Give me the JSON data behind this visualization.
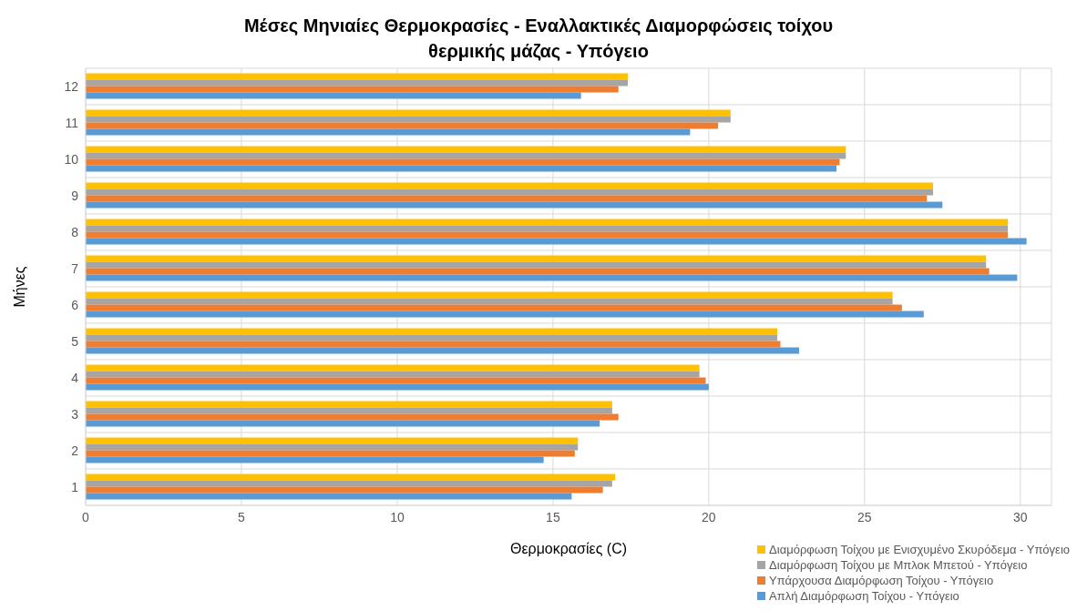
{
  "chart_data": {
    "type": "bar",
    "orientation": "horizontal",
    "title": "Μέσες Μηνιαίες Θερμοκρασίες - Εναλλακτικές Διαμορφώσεις τοίχου θερμικής μάζας - Υπόγειο",
    "xlabel": "Θερμοκρασίες (C)",
    "ylabel": "Μήνες",
    "categories": [
      "12",
      "11",
      "10",
      "9",
      "8",
      "7",
      "6",
      "5",
      "4",
      "3",
      "2",
      "1"
    ],
    "series": [
      {
        "name": "Διαμόρφωση Τοίχου με Ενισχυμένο Σκυρόδεμα - Υπόγειο",
        "color": "#ffc000",
        "values": [
          17.4,
          20.7,
          24.4,
          27.2,
          29.6,
          28.9,
          25.9,
          22.2,
          19.7,
          16.9,
          15.8,
          17.0
        ]
      },
      {
        "name": "Διαμόρφωση Τοίχου με Μπλοκ Μπετού - Υπόγειο",
        "color": "#a5a5a5",
        "values": [
          17.4,
          20.7,
          24.4,
          27.2,
          29.6,
          28.9,
          25.9,
          22.2,
          19.7,
          16.9,
          15.8,
          16.9
        ]
      },
      {
        "name": "Υπάρχουσα Διαμόρφωση Τοίχου - Υπόγειο",
        "color": "#ed7d31",
        "values": [
          17.1,
          20.3,
          24.2,
          27.0,
          29.6,
          29.0,
          26.2,
          22.3,
          19.9,
          17.1,
          15.7,
          16.6
        ]
      },
      {
        "name": "Απλή Διαμόρφωση Τοίχου - Υπόγειο",
        "color": "#5b9bd5",
        "values": [
          15.9,
          19.4,
          24.1,
          27.5,
          30.2,
          29.9,
          26.9,
          22.9,
          20.0,
          16.5,
          14.7,
          15.6
        ]
      }
    ],
    "xlim": [
      0,
      31
    ],
    "xticks": [
      0,
      5,
      10,
      15,
      20,
      25,
      30
    ],
    "grid": true,
    "legend": "bottom right"
  }
}
